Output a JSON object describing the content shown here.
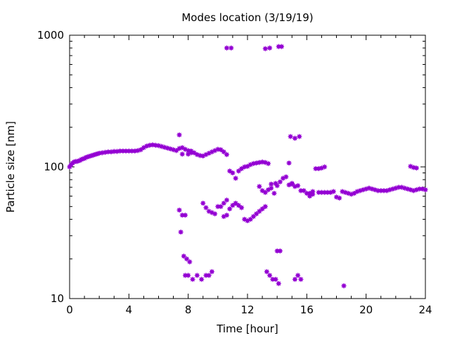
{
  "chart_data": {
    "type": "scatter",
    "title": "Modes location (3/19/19)",
    "xlabel": "Time [hour]",
    "ylabel": "Particle size [nm]",
    "xlim": [
      0,
      24
    ],
    "ylim": [
      10,
      1000
    ],
    "yscale": "log",
    "grid": false,
    "marker_color": "#9400d3",
    "x_ticks": [
      0,
      4,
      8,
      12,
      16,
      20,
      24
    ],
    "x_tick_labels": [
      "0",
      "4",
      "8",
      "12",
      "16",
      "20",
      "24"
    ],
    "y_ticks": [
      10,
      100,
      1000
    ],
    "y_tick_labels": [
      "10",
      "100",
      "1000"
    ],
    "series": [
      {
        "points": [
          [
            0.0,
            100
          ],
          [
            0.1,
            104
          ],
          [
            0.2,
            107
          ],
          [
            0.3,
            109
          ],
          [
            0.4,
            110
          ],
          [
            0.5,
            110
          ],
          [
            0.6,
            111
          ],
          [
            0.7,
            112
          ],
          [
            0.8,
            114
          ],
          [
            0.9,
            115
          ],
          [
            1.0,
            116
          ],
          [
            1.1,
            118
          ],
          [
            1.2,
            119
          ],
          [
            1.3,
            120
          ],
          [
            1.4,
            121
          ],
          [
            1.5,
            122
          ],
          [
            1.6,
            123
          ],
          [
            1.7,
            124
          ],
          [
            1.8,
            125
          ],
          [
            1.9,
            126
          ],
          [
            2.0,
            127
          ],
          [
            2.2,
            128
          ],
          [
            2.4,
            129
          ],
          [
            2.6,
            130
          ],
          [
            2.8,
            130
          ],
          [
            3.0,
            131
          ],
          [
            3.2,
            131
          ],
          [
            3.4,
            132
          ],
          [
            3.6,
            132
          ],
          [
            3.8,
            132
          ],
          [
            4.0,
            132
          ],
          [
            4.2,
            132
          ],
          [
            4.4,
            132
          ],
          [
            4.6,
            133
          ],
          [
            4.8,
            135
          ],
          [
            5.0,
            140
          ],
          [
            5.2,
            144
          ],
          [
            5.4,
            146
          ],
          [
            5.6,
            147
          ],
          [
            5.8,
            146
          ],
          [
            6.0,
            145
          ],
          [
            6.2,
            143
          ],
          [
            6.4,
            141
          ],
          [
            6.6,
            139
          ],
          [
            6.8,
            137
          ],
          [
            7.0,
            135
          ],
          [
            7.2,
            133
          ],
          [
            7.4,
            138
          ],
          [
            7.6,
            140
          ],
          [
            7.8,
            136
          ],
          [
            8.0,
            133
          ],
          [
            8.2,
            132
          ],
          [
            8.4,
            128
          ],
          [
            8.6,
            124
          ],
          [
            8.8,
            122
          ],
          [
            9.0,
            121
          ],
          [
            9.2,
            124
          ],
          [
            9.4,
            127
          ],
          [
            9.6,
            130
          ],
          [
            9.8,
            133
          ],
          [
            10.0,
            136
          ],
          [
            10.2,
            135
          ],
          [
            10.4,
            130
          ],
          [
            10.6,
            124
          ],
          [
            10.8,
            93
          ],
          [
            11.0,
            90
          ],
          [
            11.2,
            82
          ],
          [
            11.4,
            93
          ],
          [
            11.6,
            97
          ],
          [
            11.8,
            100
          ],
          [
            12.0,
            101
          ],
          [
            12.2,
            104
          ],
          [
            12.4,
            106
          ],
          [
            12.6,
            107
          ],
          [
            12.8,
            108
          ],
          [
            13.0,
            109
          ],
          [
            13.2,
            108
          ],
          [
            13.4,
            106
          ],
          [
            14.0,
            72
          ],
          [
            14.2,
            77
          ],
          [
            14.4,
            82
          ],
          [
            14.6,
            84
          ],
          [
            14.8,
            73
          ],
          [
            15.0,
            75
          ],
          [
            15.2,
            71
          ],
          [
            15.4,
            72
          ],
          [
            15.6,
            66
          ],
          [
            15.8,
            66
          ],
          [
            16.0,
            63
          ],
          [
            16.2,
            63
          ],
          [
            16.4,
            65
          ],
          [
            16.6,
            97
          ],
          [
            16.8,
            97
          ],
          [
            17.0,
            98
          ],
          [
            17.2,
            100
          ],
          [
            16.8,
            64
          ],
          [
            17.0,
            64
          ],
          [
            17.2,
            64
          ],
          [
            17.4,
            64
          ],
          [
            17.6,
            64
          ],
          [
            17.8,
            65
          ],
          [
            18.0,
            59
          ],
          [
            18.2,
            58
          ],
          [
            18.4,
            65
          ],
          [
            18.6,
            64
          ],
          [
            18.8,
            63
          ],
          [
            19.0,
            62
          ],
          [
            19.2,
            63
          ],
          [
            19.4,
            65
          ],
          [
            19.6,
            66
          ],
          [
            19.8,
            67
          ],
          [
            20.0,
            68
          ],
          [
            20.2,
            69
          ],
          [
            20.4,
            68
          ],
          [
            20.6,
            67
          ],
          [
            20.8,
            66
          ],
          [
            21.0,
            66
          ],
          [
            21.2,
            66
          ],
          [
            21.4,
            66
          ],
          [
            21.6,
            67
          ],
          [
            21.8,
            68
          ],
          [
            22.0,
            69
          ],
          [
            22.2,
            70
          ],
          [
            22.4,
            70
          ],
          [
            22.6,
            69
          ],
          [
            22.8,
            68
          ],
          [
            23.0,
            67
          ],
          [
            23.2,
            66
          ],
          [
            23.4,
            67
          ],
          [
            23.6,
            68
          ],
          [
            23.8,
            68
          ],
          [
            24.0,
            67
          ],
          [
            23.0,
            101
          ],
          [
            23.2,
            99
          ],
          [
            23.4,
            98
          ],
          [
            7.4,
            175
          ],
          [
            7.6,
            125
          ],
          [
            8.0,
            125
          ],
          [
            8.2,
            128
          ],
          [
            7.4,
            47
          ],
          [
            7.6,
            43
          ],
          [
            7.8,
            43
          ],
          [
            7.5,
            32
          ],
          [
            7.7,
            21
          ],
          [
            7.9,
            20
          ],
          [
            8.1,
            19
          ],
          [
            7.8,
            15
          ],
          [
            8.0,
            15
          ],
          [
            8.3,
            14
          ],
          [
            8.6,
            15
          ],
          [
            8.9,
            14
          ],
          [
            9.2,
            15
          ],
          [
            9.4,
            15
          ],
          [
            9.6,
            16
          ],
          [
            9.0,
            53
          ],
          [
            9.2,
            49
          ],
          [
            9.4,
            46
          ],
          [
            9.6,
            45
          ],
          [
            9.8,
            44
          ],
          [
            10.0,
            50
          ],
          [
            10.2,
            50
          ],
          [
            10.4,
            53
          ],
          [
            10.6,
            56
          ],
          [
            10.8,
            48
          ],
          [
            11.0,
            51
          ],
          [
            11.2,
            53
          ],
          [
            11.4,
            51
          ],
          [
            11.6,
            49
          ],
          [
            10.4,
            42
          ],
          [
            10.6,
            43
          ],
          [
            11.8,
            40
          ],
          [
            12.0,
            39
          ],
          [
            12.2,
            40
          ],
          [
            12.4,
            42
          ],
          [
            12.6,
            44
          ],
          [
            12.8,
            46
          ],
          [
            13.0,
            48
          ],
          [
            13.2,
            50
          ],
          [
            12.8,
            71
          ],
          [
            13.0,
            66
          ],
          [
            13.2,
            64
          ],
          [
            13.4,
            67
          ],
          [
            13.6,
            69
          ],
          [
            13.8,
            63
          ],
          [
            13.6,
            74
          ],
          [
            13.9,
            75
          ],
          [
            13.3,
            16
          ],
          [
            13.5,
            15
          ],
          [
            13.7,
            14
          ],
          [
            13.9,
            14
          ],
          [
            14.1,
            13
          ],
          [
            14.0,
            23
          ],
          [
            14.2,
            23
          ],
          [
            14.8,
            107
          ],
          [
            14.9,
            170
          ],
          [
            15.2,
            165
          ],
          [
            15.5,
            170
          ],
          [
            15.0,
            74
          ],
          [
            15.2,
            14
          ],
          [
            15.4,
            15
          ],
          [
            15.6,
            14
          ],
          [
            18.5,
            12.5
          ],
          [
            10.6,
            800
          ],
          [
            10.9,
            800
          ],
          [
            13.2,
            790
          ],
          [
            13.5,
            800
          ],
          [
            14.1,
            820
          ],
          [
            14.3,
            820
          ],
          [
            16.2,
            60
          ],
          [
            16.4,
            62
          ]
        ]
      }
    ]
  }
}
